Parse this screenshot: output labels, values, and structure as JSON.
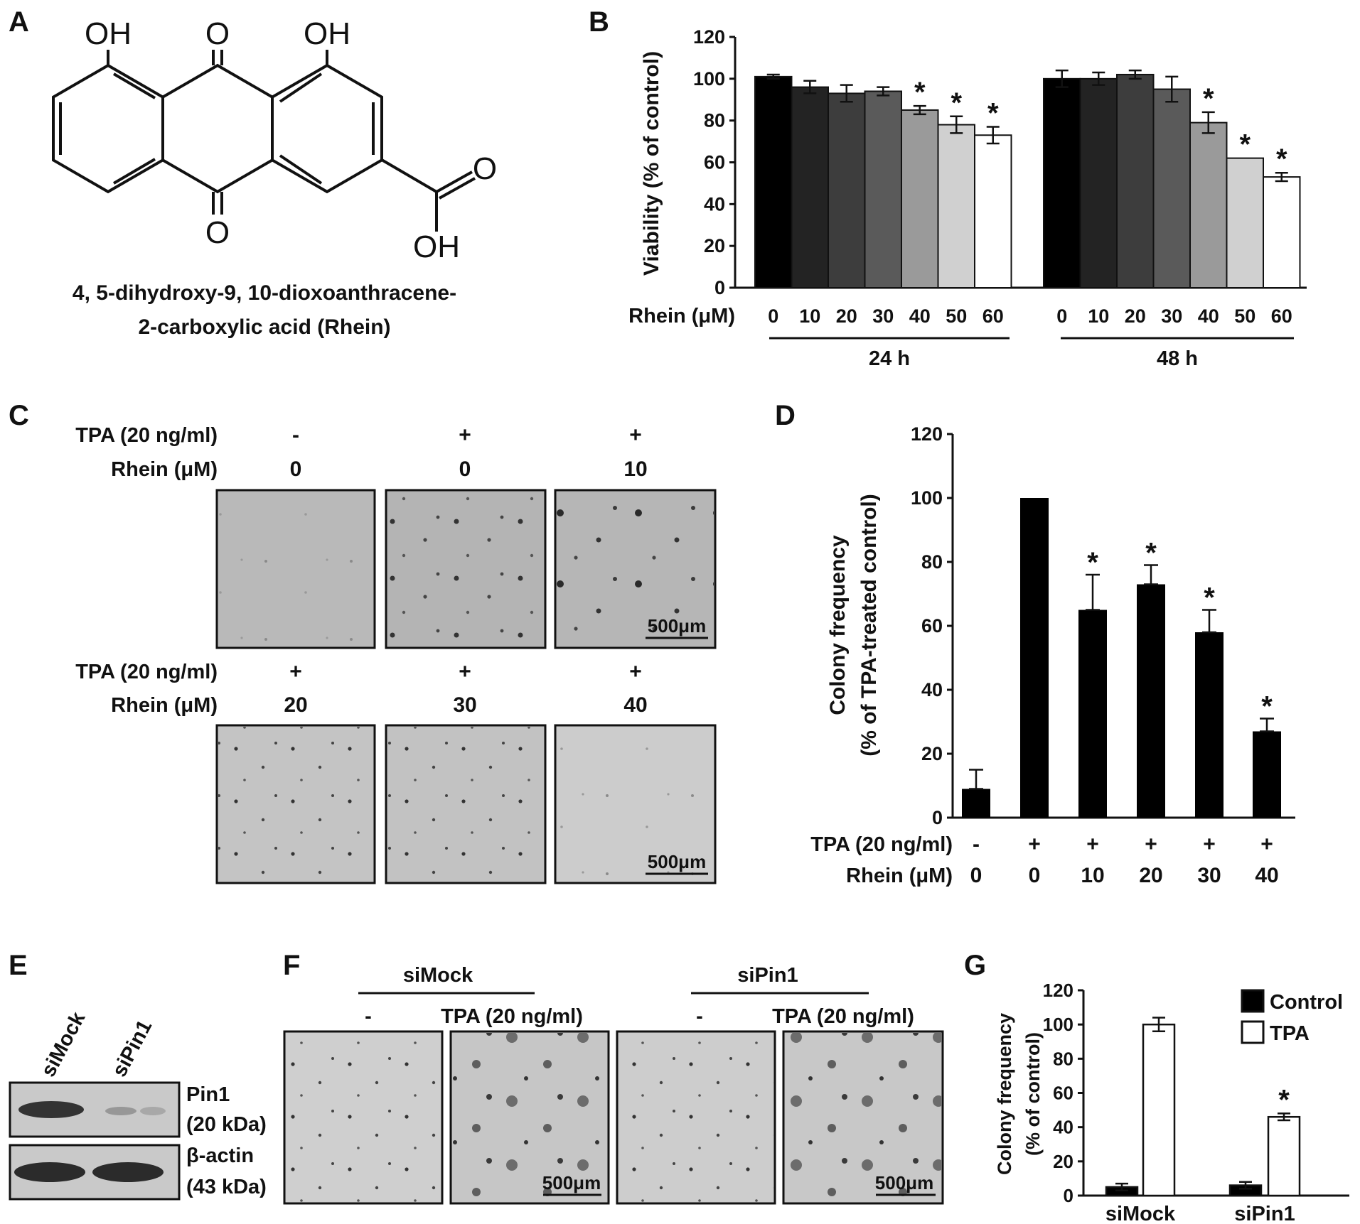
{
  "panels": {
    "A": {
      "label": "A",
      "atoms": {
        "oh_left": "OH",
        "o_top": "O",
        "oh_right": "OH",
        "o_bottom": "O",
        "o_acid": "O",
        "oh_acid": "OH"
      },
      "caption_line1": "4, 5-dihydroxy-9, 10-dioxoanthracene-",
      "caption_line2": "2-carboxylic acid (Rhein)"
    },
    "B": {
      "label": "B",
      "row_label": "Rhein (μM)",
      "group_labels": [
        "24 h",
        "48 h"
      ]
    },
    "C": {
      "label": "C",
      "row1": {
        "tpa_label": "TPA (20 ng/ml)",
        "rhein_label": "Rhein (μM)",
        "tpa": [
          "-",
          "+",
          "+"
        ],
        "rhein": [
          "0",
          "0",
          "10"
        ]
      },
      "row2": {
        "tpa_label": "TPA (20 ng/ml)",
        "rhein_label": "Rhein (μM)",
        "tpa": [
          "+",
          "+",
          "+"
        ],
        "rhein": [
          "20",
          "30",
          "40"
        ]
      },
      "scale_bar": "500μm"
    },
    "D": {
      "label": "D",
      "tpa_label": "TPA (20 ng/ml)",
      "rhein_label": "Rhein (μM)",
      "tpa": [
        "-",
        "+",
        "+",
        "+",
        "+",
        "+"
      ],
      "rhein": [
        "0",
        "0",
        "10",
        "20",
        "30",
        "40"
      ]
    },
    "E": {
      "label": "E",
      "lanes": [
        "siMock",
        "siPin1"
      ],
      "band1_name": "Pin1",
      "band1_size": "(20 kDa)",
      "band2_name": "β-actin",
      "band2_size": "(43 kDa)"
    },
    "F": {
      "label": "F",
      "groups": [
        "siMock",
        "siPin1"
      ],
      "conditions": [
        "-",
        "TPA (20 ng/ml)",
        "-",
        "TPA (20 ng/ml)"
      ],
      "scale_bar": "500μm"
    },
    "G": {
      "label": "G"
    }
  },
  "chart_data": [
    {
      "id": "B",
      "type": "bar",
      "ylabel": "Viability  (% of control)",
      "ylim": [
        0,
        120
      ],
      "yticks": [
        0,
        20,
        40,
        60,
        80,
        100,
        120
      ],
      "categories": [
        "0",
        "10",
        "20",
        "30",
        "40",
        "50",
        "60"
      ],
      "groups": [
        "24 h",
        "48 h"
      ],
      "series": [
        {
          "group": "24 h",
          "values": [
            101,
            96,
            93,
            94,
            85,
            78,
            73
          ],
          "errors": [
            1,
            3,
            4,
            2,
            2,
            4,
            4
          ],
          "significant": [
            false,
            false,
            false,
            false,
            true,
            true,
            true
          ]
        },
        {
          "group": "48 h",
          "values": [
            100,
            100,
            102,
            95,
            79,
            62,
            53
          ],
          "errors": [
            4,
            3,
            2,
            6,
            5,
            0,
            2
          ],
          "significant": [
            false,
            false,
            false,
            false,
            true,
            true,
            true
          ]
        }
      ],
      "bar_colors": [
        "#000000",
        "#232323",
        "#3d3d3d",
        "#5a5a5a",
        "#9a9a9a",
        "#d0d0d0",
        "#ffffff"
      ],
      "significance_mark": "*"
    },
    {
      "id": "D",
      "type": "bar",
      "ylabel_line1": "Colony frequency",
      "ylabel_line2": "(% of TPA-treated control)",
      "ylim": [
        0,
        120
      ],
      "yticks": [
        0,
        20,
        40,
        60,
        80,
        100,
        120
      ],
      "categories": [
        "0",
        "0",
        "10",
        "20",
        "30",
        "40"
      ],
      "values": [
        9,
        100,
        65,
        73,
        58,
        27
      ],
      "errors": [
        6,
        0,
        11,
        6,
        7,
        4
      ],
      "significant": [
        false,
        false,
        true,
        true,
        true,
        true
      ],
      "bar_color": "#000000",
      "significance_mark": "*"
    },
    {
      "id": "G",
      "type": "bar",
      "ylabel_line1": "Colony frequency",
      "ylabel_line2": "(% of control)",
      "ylim": [
        0,
        120
      ],
      "yticks": [
        0,
        20,
        40,
        60,
        80,
        100,
        120
      ],
      "categories": [
        "siMock",
        "siPin1"
      ],
      "series": [
        {
          "name": "Control",
          "values": [
            5,
            6
          ],
          "errors": [
            2,
            2
          ],
          "color": "#000000"
        },
        {
          "name": "TPA",
          "values": [
            100,
            46
          ],
          "errors": [
            4,
            2
          ],
          "color": "#ffffff"
        }
      ],
      "significant_tpa": [
        false,
        true
      ],
      "legend": "top-right",
      "significance_mark": "*"
    }
  ]
}
